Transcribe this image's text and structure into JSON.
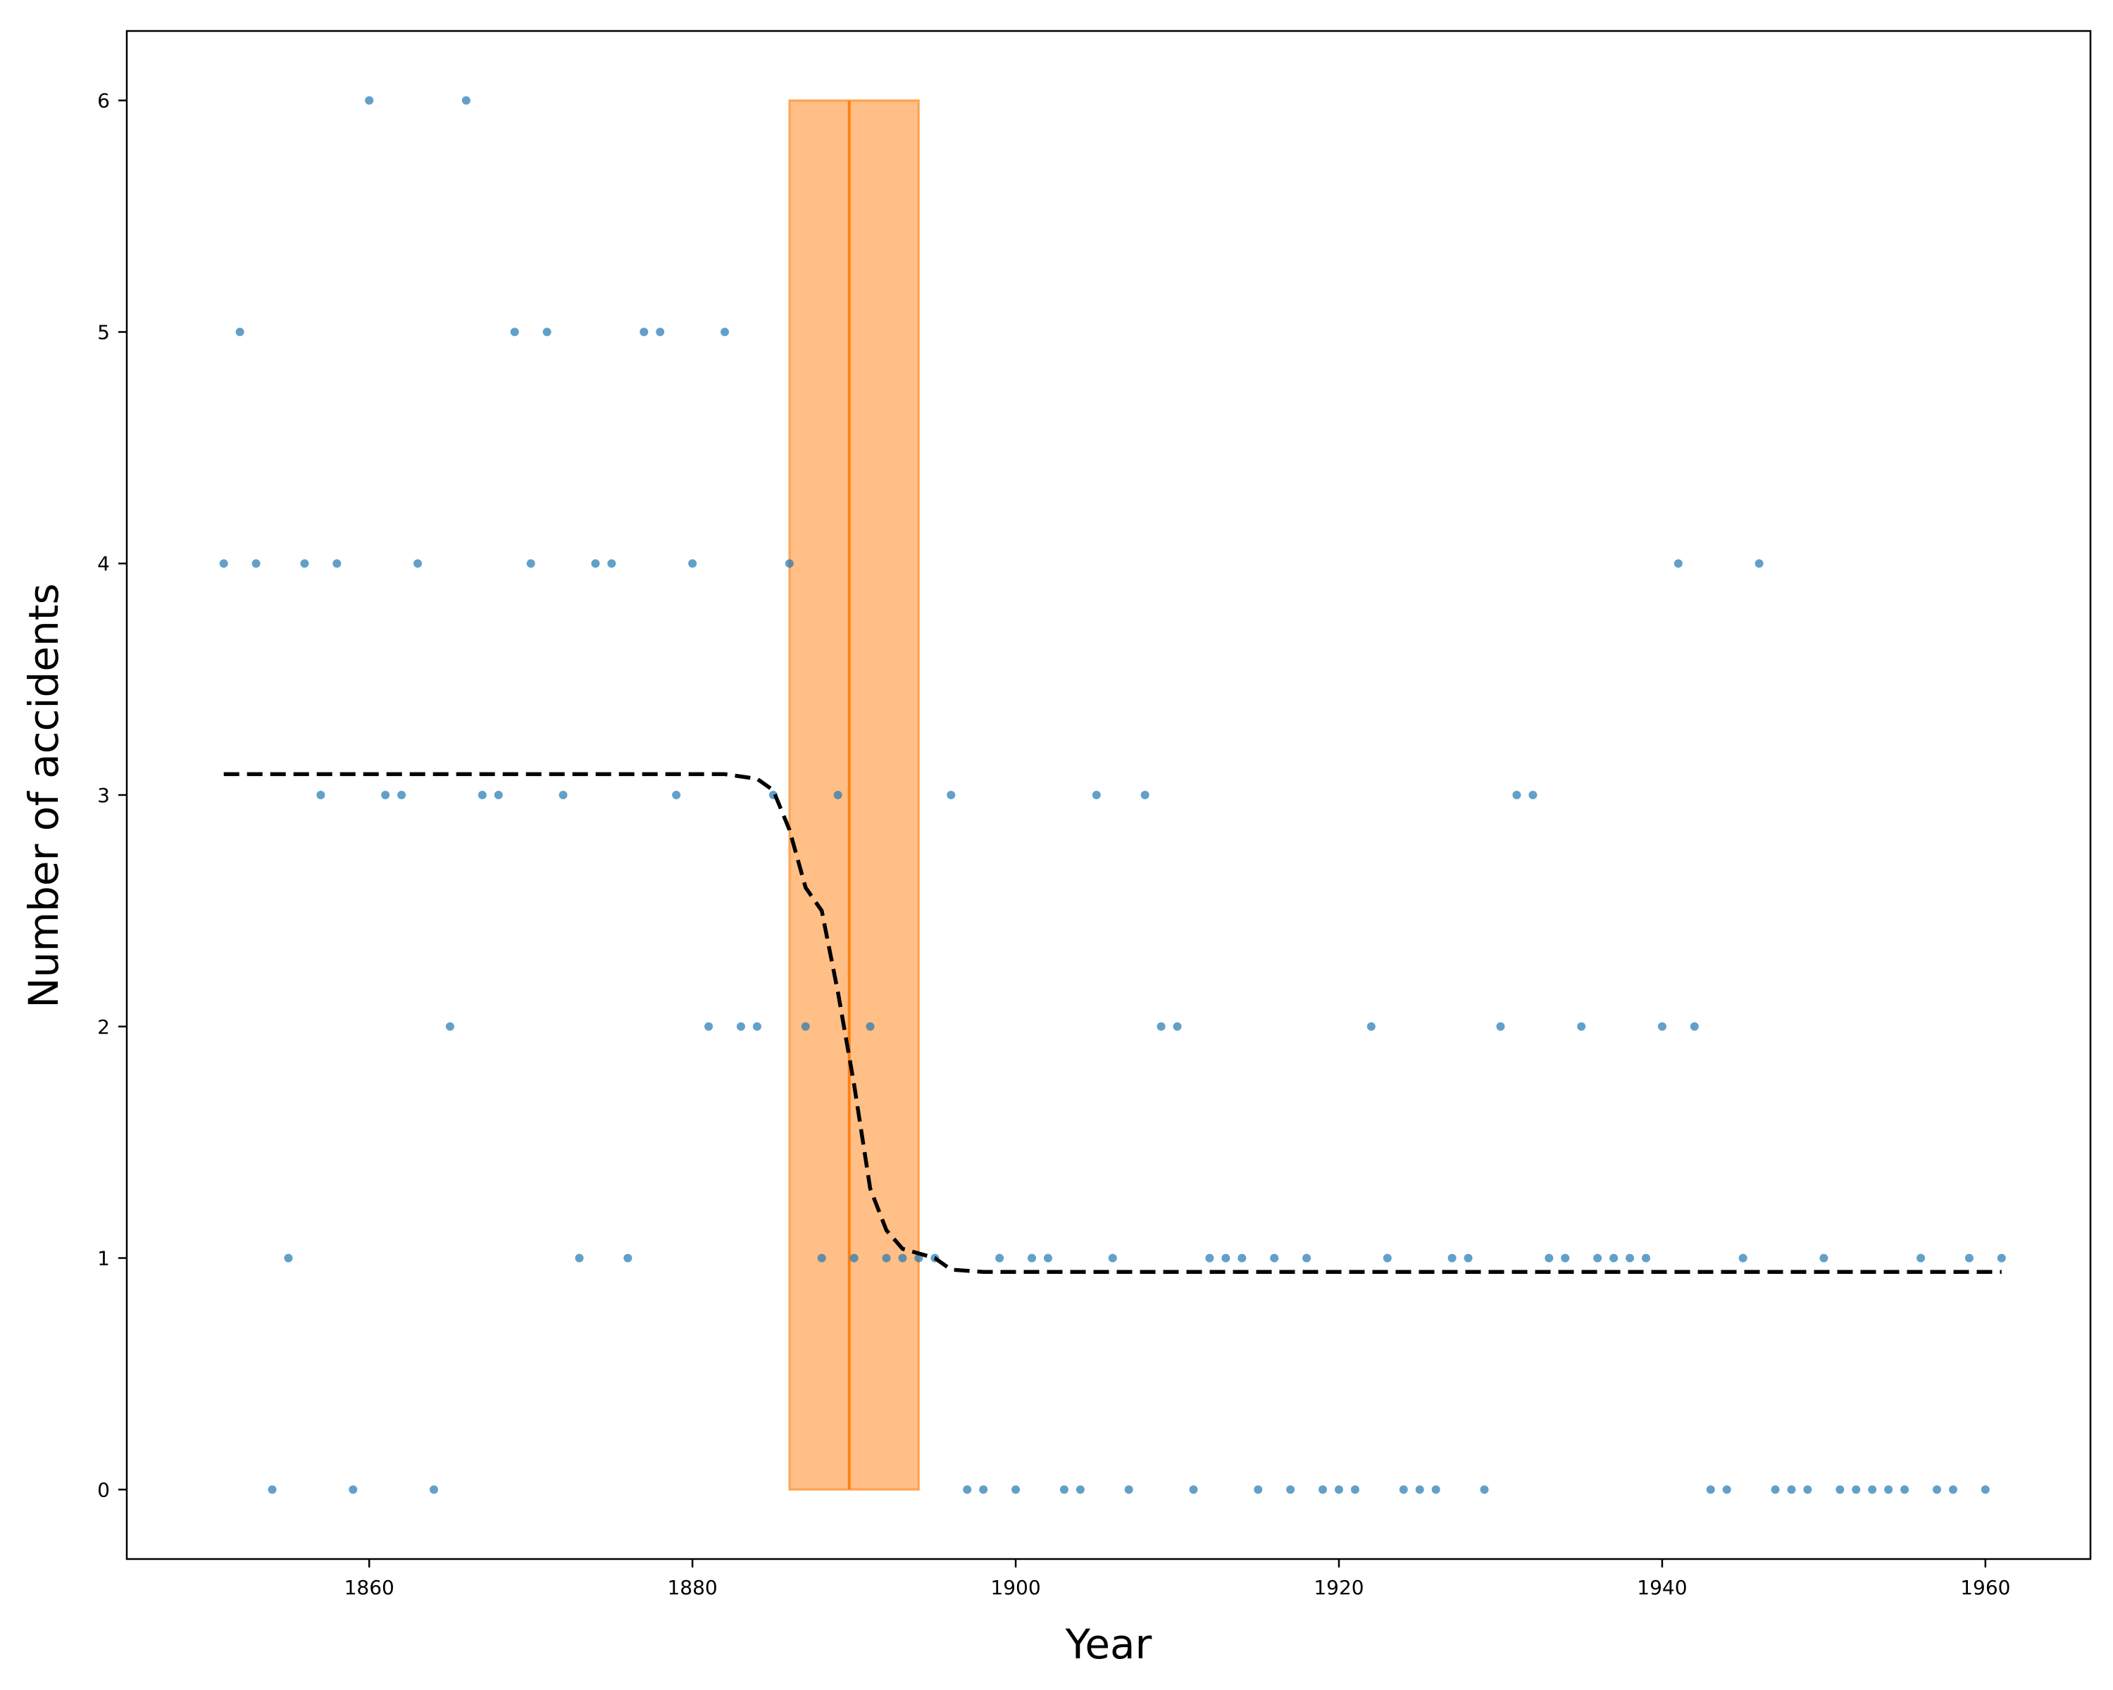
{
  "chart_data": {
    "type": "scatter",
    "title": "",
    "xlabel": "Year",
    "ylabel": "Number of accidents",
    "xlim": [
      1845,
      1966.5
    ],
    "ylim": [
      -0.3,
      6.3
    ],
    "x_ticks": [
      1860,
      1880,
      1900,
      1920,
      1940,
      1960
    ],
    "y_ticks": [
      0,
      1,
      2,
      3,
      4,
      5,
      6
    ],
    "grid": false,
    "legend": "none",
    "colors": {
      "points": "#1f77b4",
      "band": "#ff7f0e",
      "line": "#000000"
    },
    "series": [
      {
        "type": "scatter",
        "points": [
          [
            1851,
            4
          ],
          [
            1852,
            5
          ],
          [
            1853,
            4
          ],
          [
            1854,
            0
          ],
          [
            1855,
            1
          ],
          [
            1856,
            4
          ],
          [
            1857,
            3
          ],
          [
            1858,
            4
          ],
          [
            1859,
            0
          ],
          [
            1860,
            6
          ],
          [
            1861,
            3
          ],
          [
            1862,
            3
          ],
          [
            1863,
            4
          ],
          [
            1864,
            0
          ],
          [
            1865,
            2
          ],
          [
            1866,
            6
          ],
          [
            1867,
            3
          ],
          [
            1868,
            3
          ],
          [
            1869,
            5
          ],
          [
            1870,
            4
          ],
          [
            1871,
            5
          ],
          [
            1872,
            3
          ],
          [
            1873,
            1
          ],
          [
            1874,
            4
          ],
          [
            1875,
            4
          ],
          [
            1876,
            1
          ],
          [
            1877,
            5
          ],
          [
            1878,
            5
          ],
          [
            1879,
            3
          ],
          [
            1880,
            4
          ],
          [
            1881,
            2
          ],
          [
            1882,
            5
          ],
          [
            1883,
            2
          ],
          [
            1884,
            2
          ],
          [
            1885,
            3
          ],
          [
            1886,
            4
          ],
          [
            1887,
            2
          ],
          [
            1888,
            1
          ],
          [
            1889,
            3
          ],
          [
            1890,
            1
          ],
          [
            1891,
            2
          ],
          [
            1892,
            1
          ],
          [
            1893,
            1
          ],
          [
            1894,
            1
          ],
          [
            1895,
            1
          ],
          [
            1896,
            3
          ],
          [
            1897,
            0
          ],
          [
            1898,
            0
          ],
          [
            1899,
            1
          ],
          [
            1900,
            0
          ],
          [
            1901,
            1
          ],
          [
            1902,
            1
          ],
          [
            1903,
            0
          ],
          [
            1904,
            0
          ],
          [
            1905,
            3
          ],
          [
            1906,
            1
          ],
          [
            1907,
            0
          ],
          [
            1908,
            3
          ],
          [
            1909,
            2
          ],
          [
            1910,
            2
          ],
          [
            1911,
            0
          ],
          [
            1912,
            1
          ],
          [
            1913,
            1
          ],
          [
            1914,
            1
          ],
          [
            1915,
            0
          ],
          [
            1916,
            1
          ],
          [
            1917,
            0
          ],
          [
            1918,
            1
          ],
          [
            1919,
            0
          ],
          [
            1920,
            0
          ],
          [
            1921,
            0
          ],
          [
            1922,
            2
          ],
          [
            1923,
            1
          ],
          [
            1924,
            0
          ],
          [
            1925,
            0
          ],
          [
            1926,
            0
          ],
          [
            1927,
            1
          ],
          [
            1928,
            1
          ],
          [
            1929,
            0
          ],
          [
            1930,
            2
          ],
          [
            1931,
            3
          ],
          [
            1932,
            3
          ],
          [
            1933,
            1
          ],
          [
            1934,
            1
          ],
          [
            1935,
            2
          ],
          [
            1936,
            1
          ],
          [
            1937,
            1
          ],
          [
            1938,
            1
          ],
          [
            1939,
            1
          ],
          [
            1940,
            2
          ],
          [
            1941,
            4
          ],
          [
            1942,
            2
          ],
          [
            1943,
            0
          ],
          [
            1944,
            0
          ],
          [
            1945,
            1
          ],
          [
            1946,
            4
          ],
          [
            1947,
            0
          ],
          [
            1948,
            0
          ],
          [
            1949,
            0
          ],
          [
            1950,
            1
          ],
          [
            1951,
            0
          ],
          [
            1952,
            0
          ],
          [
            1953,
            0
          ],
          [
            1954,
            0
          ],
          [
            1955,
            0
          ],
          [
            1956,
            1
          ],
          [
            1957,
            0
          ],
          [
            1958,
            0
          ],
          [
            1959,
            1
          ],
          [
            1960,
            0
          ],
          [
            1961,
            1
          ]
        ]
      },
      {
        "type": "line",
        "style": "dashed",
        "points": [
          [
            1851,
            3.09
          ],
          [
            1880,
            3.09
          ],
          [
            1882,
            3.09
          ],
          [
            1884,
            3.07
          ],
          [
            1885,
            3.02
          ],
          [
            1886,
            2.85
          ],
          [
            1887,
            2.6
          ],
          [
            1888,
            2.5
          ],
          [
            1889,
            2.15
          ],
          [
            1890,
            1.75
          ],
          [
            1891,
            1.3
          ],
          [
            1892,
            1.12
          ],
          [
            1893,
            1.04
          ],
          [
            1894,
            1.02
          ],
          [
            1895,
            1.0
          ],
          [
            1896,
            0.95
          ],
          [
            1898,
            0.94
          ],
          [
            1961,
            0.94
          ]
        ]
      }
    ],
    "bands": [
      {
        "x_start": 1886,
        "x_end": 1894,
        "y_min": 0,
        "y_max": 6,
        "center": 1889.7
      }
    ]
  }
}
